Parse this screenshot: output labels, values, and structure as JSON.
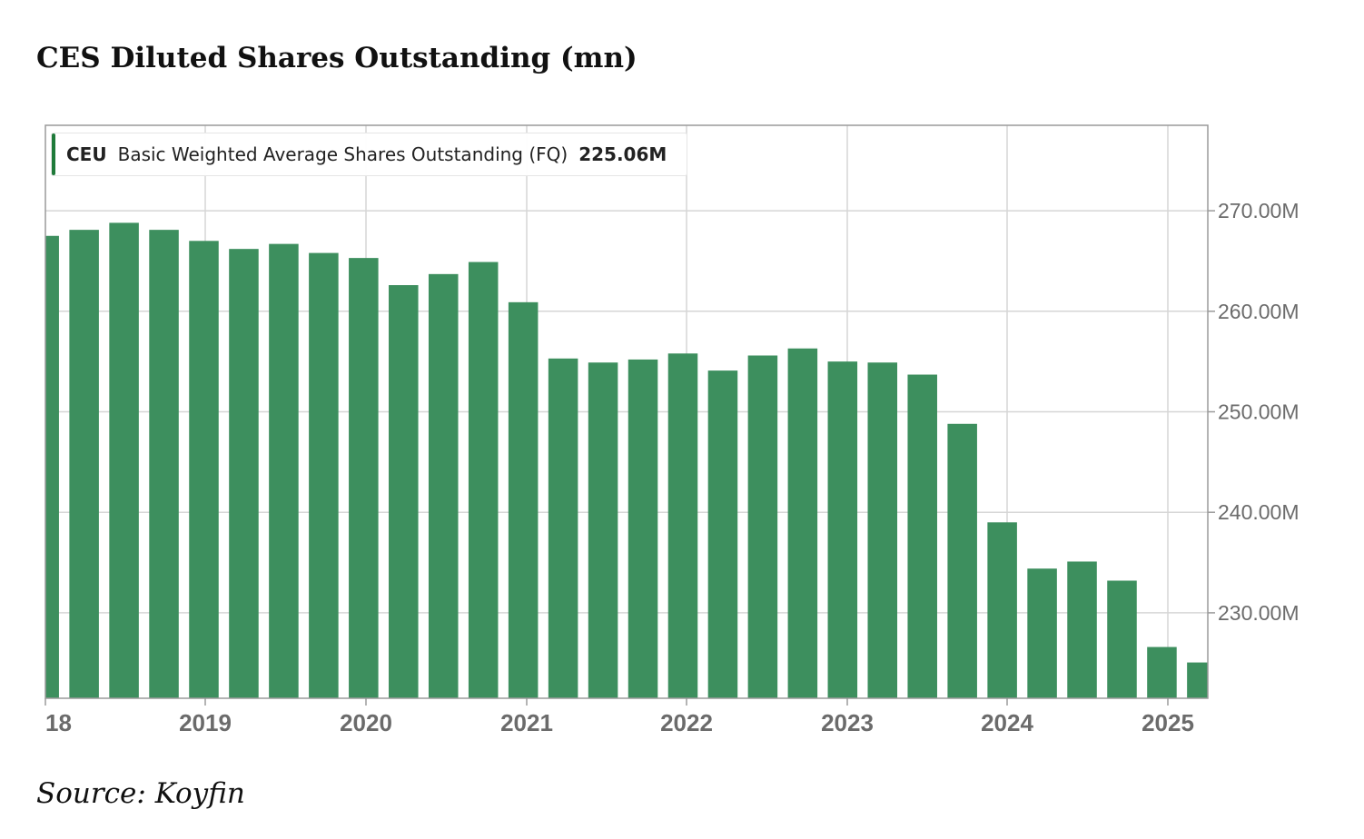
{
  "title": "CES Diluted Shares Outstanding (mn)",
  "source": "Source: Koyfin",
  "legend": {
    "ticker": "CEU",
    "metric": "Basic Weighted Average Shares Outstanding (FQ)",
    "latest": "225.06M",
    "color": "#1f7a3a"
  },
  "chart_data": {
    "type": "bar",
    "bar_color": "#3d8f5e",
    "ylim": [
      221.5,
      278.5
    ],
    "y_ticks": [
      230,
      240,
      250,
      260,
      270
    ],
    "y_tick_labels": [
      "230.00M",
      "240.00M",
      "250.00M",
      "260.00M",
      "270.00M"
    ],
    "x_tick_labels": [
      "18",
      "2019",
      "2020",
      "2021",
      "2022",
      "2023",
      "2024",
      "2025"
    ],
    "values": [
      267.5,
      268.1,
      268.8,
      268.1,
      267.0,
      266.2,
      266.7,
      265.8,
      265.3,
      262.6,
      263.7,
      264.9,
      260.9,
      255.3,
      254.9,
      255.2,
      255.8,
      254.1,
      255.6,
      256.3,
      255.0,
      254.9,
      253.7,
      248.8,
      239.0,
      234.4,
      235.1,
      233.2,
      226.6,
      225.06
    ]
  }
}
